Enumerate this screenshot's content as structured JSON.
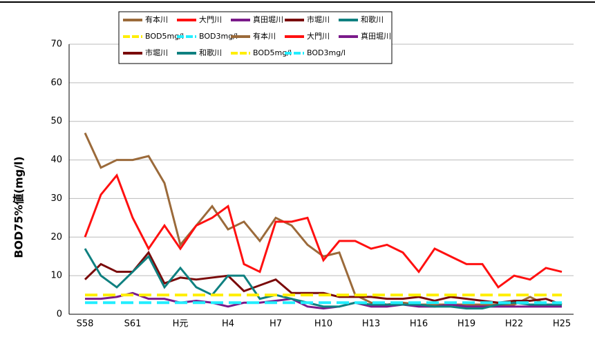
{
  "chart_data": {
    "type": "line",
    "ylabel": "BOD75%値(mg/l)",
    "categories": [
      "S58",
      null,
      null,
      "S61",
      null,
      null,
      "H元",
      null,
      null,
      "H4",
      null,
      null,
      "H7",
      null,
      null,
      "H10",
      null,
      null,
      "H13",
      null,
      null,
      "H16",
      null,
      null,
      "H19",
      null,
      null,
      "H22",
      null,
      null,
      "H25"
    ],
    "series": [
      {
        "name": "有本川",
        "color": "#9b6a3a",
        "values": [
          47,
          38,
          40,
          40,
          41,
          34,
          18,
          23,
          28,
          22,
          24,
          19,
          25,
          23,
          18,
          15,
          16,
          5,
          3,
          2.5,
          3,
          2.5,
          2.5,
          2.5,
          2.5,
          2.5,
          2.5,
          2.5,
          4.5,
          2.5,
          2.5
        ]
      },
      {
        "name": "大門川",
        "color": "#ff1010",
        "values": [
          20,
          31,
          36,
          25,
          17,
          23,
          17,
          23,
          25,
          28,
          13,
          11,
          24,
          24,
          25,
          14,
          19,
          19,
          17,
          18,
          16,
          11,
          17,
          15,
          13,
          13,
          7,
          10,
          9,
          12,
          11
        ]
      },
      {
        "name": "真田堀川",
        "color": "#7a1a8a",
        "values": [
          4,
          4,
          4.5,
          5.5,
          4,
          4,
          3,
          3.5,
          3,
          2,
          3,
          3,
          3.5,
          4,
          2,
          1.5,
          2,
          3,
          2,
          2,
          2.5,
          2,
          2,
          2.5,
          2,
          2,
          2,
          2,
          2,
          2,
          2
        ]
      },
      {
        "name": "市堀川",
        "color": "#7a0a0a",
        "values": [
          9,
          13,
          11,
          11,
          16,
          8,
          9.5,
          9,
          9.5,
          10,
          6,
          7.5,
          9,
          5.5,
          5.5,
          5.5,
          4.5,
          4.5,
          4.5,
          4,
          4,
          4.5,
          3.5,
          4.5,
          4,
          3.5,
          3,
          3.5,
          3.5,
          4,
          2.5
        ]
      },
      {
        "name": "和歌川",
        "color": "#0f8080",
        "values": [
          17,
          10,
          7,
          11,
          15,
          7,
          12,
          7,
          5,
          10,
          10,
          4,
          5,
          4,
          3,
          2,
          2,
          3,
          2.5,
          2.5,
          2.5,
          2.5,
          2,
          2,
          1.5,
          1.5,
          2.5,
          3,
          2.5,
          2.5,
          2.5
        ]
      },
      {
        "name": "BOD5mg/l",
        "color": "#ffee00",
        "dashed": true,
        "values": [
          5,
          5,
          5,
          5,
          5,
          5,
          5,
          5,
          5,
          5,
          5,
          5,
          5,
          5,
          5,
          5,
          5,
          5,
          5,
          5,
          5,
          5,
          5,
          5,
          5,
          5,
          5,
          5,
          5,
          5,
          5
        ]
      },
      {
        "name": "BOD3mg/l",
        "color": "#22eeff",
        "dashed": true,
        "values": [
          3,
          3,
          3,
          3,
          3,
          3,
          3,
          3,
          3,
          3,
          3,
          3,
          3,
          3,
          3,
          3,
          3,
          3,
          3,
          3,
          3,
          3,
          3,
          3,
          3,
          3,
          3,
          3,
          3,
          3,
          3
        ]
      }
    ],
    "legend": [
      "有本川",
      "大門川",
      "真田堀川",
      "市堀川",
      "和歌川",
      "BOD5mg/l",
      "BOD3mg/l",
      "有本川",
      "大門川",
      "真田堀川",
      "市堀川",
      "和歌川",
      "BOD5mg/l",
      "BOD3mg/l"
    ],
    "ylim": [
      0,
      70
    ],
    "yticks": [
      0,
      10,
      20,
      30,
      40,
      50,
      60,
      70
    ],
    "grid": true
  }
}
